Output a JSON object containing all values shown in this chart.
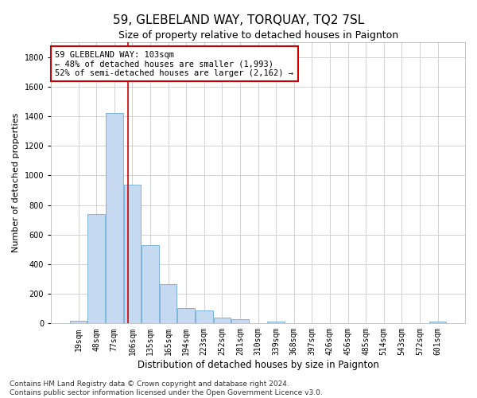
{
  "title": "59, GLEBELAND WAY, TORQUAY, TQ2 7SL",
  "subtitle": "Size of property relative to detached houses in Paignton",
  "xlabel": "Distribution of detached houses by size in Paignton",
  "ylabel": "Number of detached properties",
  "bar_labels": [
    "19sqm",
    "48sqm",
    "77sqm",
    "106sqm",
    "135sqm",
    "165sqm",
    "194sqm",
    "223sqm",
    "252sqm",
    "281sqm",
    "310sqm",
    "339sqm",
    "368sqm",
    "397sqm",
    "426sqm",
    "456sqm",
    "485sqm",
    "514sqm",
    "543sqm",
    "572sqm",
    "601sqm"
  ],
  "bar_values": [
    20,
    740,
    1420,
    940,
    530,
    265,
    105,
    90,
    40,
    27,
    0,
    15,
    0,
    0,
    0,
    0,
    0,
    0,
    0,
    0,
    15
  ],
  "bar_color": "#c5d9f0",
  "bar_edge_color": "#6baed6",
  "grid_color": "#cccccc",
  "annotation_text": "59 GLEBELAND WAY: 103sqm\n← 48% of detached houses are smaller (1,993)\n52% of semi-detached houses are larger (2,162) →",
  "annotation_box_color": "#ffffff",
  "annotation_box_edge": "#cc0000",
  "vline_x": 2.75,
  "vline_color": "#cc0000",
  "ylim": [
    0,
    1900
  ],
  "yticks": [
    0,
    200,
    400,
    600,
    800,
    1000,
    1200,
    1400,
    1600,
    1800
  ],
  "footnote": "Contains HM Land Registry data © Crown copyright and database right 2024.\nContains public sector information licensed under the Open Government Licence v3.0.",
  "title_fontsize": 11,
  "subtitle_fontsize": 9,
  "xlabel_fontsize": 8.5,
  "ylabel_fontsize": 8,
  "tick_fontsize": 7,
  "annotation_fontsize": 7.5,
  "footnote_fontsize": 6.5
}
